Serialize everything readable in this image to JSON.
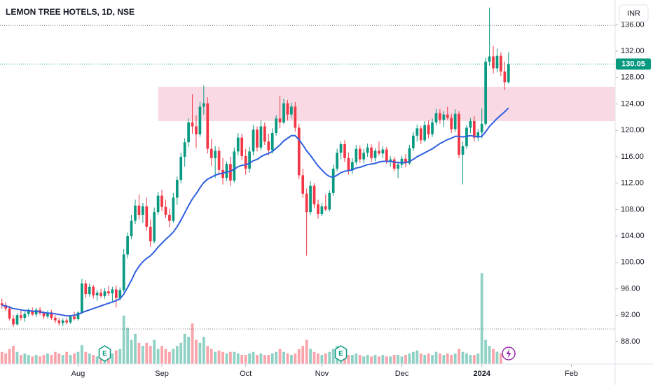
{
  "chart_data": {
    "type": "candlestick",
    "title": "LEMON TREE HOTELS, 1D, NSE",
    "currency": "INR",
    "up_color": "#089981",
    "down_color": "#f23645",
    "ma_color": "#2f5fe0",
    "zone_color": "#f8d3df",
    "xlim": [
      -0.5,
      161
    ],
    "ylim": [
      84.6,
      139.75
    ],
    "yticks": [
      {
        "value": 88,
        "label": "88.00"
      },
      {
        "value": 92,
        "label": "92.00"
      },
      {
        "value": 96,
        "label": "96.00"
      },
      {
        "value": 100,
        "label": "100.00"
      },
      {
        "value": 104,
        "label": "104.00"
      },
      {
        "value": 108,
        "label": "108.00"
      },
      {
        "value": 112,
        "label": "112.00"
      },
      {
        "value": 116,
        "label": "116.00"
      },
      {
        "value": 120,
        "label": "120.00"
      },
      {
        "value": 124,
        "label": "124.00"
      },
      {
        "value": 128,
        "label": "128.00"
      },
      {
        "value": 132,
        "label": "132.00"
      },
      {
        "value": 136,
        "label": "136.00"
      }
    ],
    "xticks": [
      {
        "value": 20,
        "label": "Aug"
      },
      {
        "value": 42,
        "label": "Sep"
      },
      {
        "value": 64,
        "label": "Oct"
      },
      {
        "value": 84,
        "label": "Nov"
      },
      {
        "value": 105,
        "label": "Dec"
      },
      {
        "value": 126,
        "label": "2024"
      },
      {
        "value": 149.5,
        "label": "Feb"
      }
    ],
    "zone": {
      "start": 41,
      "low": 121.4,
      "high": 126.6
    },
    "ref_lines": [
      135.9,
      89.9
    ],
    "events": [
      {
        "index": 27,
        "label": "E"
      },
      {
        "index": 89,
        "label": "E"
      }
    ],
    "vlim": [
      0,
      40
    ],
    "ohlc": [
      [
        93.8,
        94.5,
        93,
        93.5
      ],
      [
        93.5,
        94,
        92.6,
        93
      ],
      [
        93,
        93.4,
        91.2,
        91.5
      ],
      [
        91.5,
        92,
        90.2,
        90.6
      ],
      [
        90.6,
        92.3,
        90.4,
        92
      ],
      [
        92,
        92.8,
        91.2,
        91.6
      ],
      [
        91.6,
        92.5,
        91,
        92.2
      ],
      [
        92.2,
        93,
        91.8,
        92.6
      ],
      [
        92.6,
        93.2,
        91.9,
        92.1
      ],
      [
        92.1,
        93.1,
        91.7,
        92.8
      ],
      [
        92.8,
        93.2,
        92,
        92.3
      ],
      [
        92.3,
        92.6,
        91.4,
        91.8
      ],
      [
        91.8,
        92.7,
        91.5,
        92.4
      ],
      [
        92.4,
        92.8,
        91.3,
        91.6
      ],
      [
        91.6,
        92,
        90.8,
        91.2
      ],
      [
        91.2,
        91.6,
        90.4,
        90.8
      ],
      [
        90.8,
        91.5,
        90.3,
        91.2
      ],
      [
        91.2,
        91.6,
        90.6,
        90.9
      ],
      [
        90.9,
        92,
        90.7,
        91.8
      ],
      [
        91.8,
        92.5,
        91.2,
        91.4
      ],
      [
        91.4,
        92.6,
        91.2,
        92.4
      ],
      [
        92.4,
        97.5,
        92.2,
        96.8
      ],
      [
        96.8,
        97.3,
        94.6,
        95.2
      ],
      [
        95.2,
        96.8,
        94.8,
        96.3
      ],
      [
        96.3,
        96.6,
        94.5,
        95
      ],
      [
        95,
        95.8,
        94.2,
        95.4
      ],
      [
        95.4,
        96,
        94.6,
        94.9
      ],
      [
        94.9,
        96.1,
        94.5,
        95.6
      ],
      [
        95.6,
        96.4,
        94.9,
        95.3
      ],
      [
        95.3,
        96.3,
        94.1,
        95.9
      ],
      [
        95.9,
        96.5,
        93.2,
        94.6
      ],
      [
        94.6,
        96.2,
        94.2,
        95.8
      ],
      [
        95.8,
        102,
        95.5,
        101.2
      ],
      [
        101.2,
        104.5,
        100.6,
        104
      ],
      [
        104,
        107.2,
        103.5,
        106.3
      ],
      [
        106.3,
        109.5,
        105.8,
        108.6
      ],
      [
        108.6,
        110.3,
        106.5,
        107.2
      ],
      [
        107.2,
        109,
        106,
        108.5
      ],
      [
        108.5,
        109.8,
        104.8,
        105.4
      ],
      [
        105.4,
        106.5,
        102.4,
        103.2
      ],
      [
        103.2,
        108.3,
        102.9,
        107.6
      ],
      [
        107.6,
        110.7,
        107.2,
        110.1
      ],
      [
        110.1,
        111,
        107.8,
        108.4
      ],
      [
        108.4,
        109.5,
        106.7,
        107.2
      ],
      [
        107.2,
        108.1,
        105.3,
        106.3
      ],
      [
        106.3,
        110.5,
        106,
        109.8
      ],
      [
        109.8,
        113,
        108.7,
        112.5
      ],
      [
        112.5,
        116.6,
        112,
        116
      ],
      [
        116,
        118.8,
        114.5,
        118.2
      ],
      [
        118.2,
        121.8,
        117.5,
        121.2
      ],
      [
        121.2,
        125.5,
        119.5,
        120.6
      ],
      [
        120.6,
        122.3,
        117.3,
        119.4
      ],
      [
        119.4,
        124.3,
        119,
        123.6
      ],
      [
        123.6,
        126.8,
        122.4,
        124.1
      ],
      [
        124.1,
        125,
        116.5,
        117.2
      ],
      [
        117.2,
        118.7,
        114.6,
        115.8
      ],
      [
        115.8,
        117.6,
        112.8,
        116.9
      ],
      [
        116.9,
        117.5,
        113.2,
        114
      ],
      [
        114,
        115.8,
        111.8,
        112.8
      ],
      [
        112.8,
        115.3,
        112.3,
        114.9
      ],
      [
        114.9,
        116,
        111.6,
        112.4
      ],
      [
        112.4,
        117.4,
        112.1,
        116.8
      ],
      [
        116.8,
        119.6,
        116.2,
        118.9
      ],
      [
        118.9,
        119.5,
        115.5,
        116.1
      ],
      [
        116.1,
        117.2,
        113.3,
        114.2
      ],
      [
        114.2,
        117.5,
        113.6,
        116.8
      ],
      [
        116.8,
        120.8,
        116.2,
        120.1
      ],
      [
        120.1,
        120.6,
        116.8,
        117.4
      ],
      [
        117.4,
        121.5,
        117,
        120.6
      ],
      [
        120.6,
        121.2,
        117.8,
        118.3
      ],
      [
        118.3,
        119.5,
        116.2,
        117
      ],
      [
        117,
        120.3,
        116.5,
        119.6
      ],
      [
        119.6,
        122.3,
        119.2,
        121.8
      ],
      [
        121.8,
        125.2,
        120.3,
        121.2
      ],
      [
        121.2,
        124.8,
        121,
        124.1
      ],
      [
        124.1,
        124.6,
        121.5,
        122.4
      ],
      [
        122.4,
        124.2,
        121.8,
        123.6
      ],
      [
        123.6,
        124.3,
        119.8,
        120.4
      ],
      [
        120.4,
        121,
        112.6,
        113.2
      ],
      [
        113.2,
        114.2,
        109.8,
        110.4
      ],
      [
        110.4,
        111.2,
        101,
        107.6
      ],
      [
        107.6,
        112.3,
        107.2,
        111.6
      ],
      [
        111.6,
        112,
        108.2,
        108.8
      ],
      [
        108.8,
        109.5,
        106.6,
        107.3
      ],
      [
        107.3,
        109,
        107,
        108.5
      ],
      [
        108.5,
        110.3,
        107.8,
        108
      ],
      [
        108,
        110.9,
        107.7,
        110.5
      ],
      [
        110.5,
        114.8,
        110.1,
        114.2
      ],
      [
        114.2,
        117.2,
        113.8,
        116.6
      ],
      [
        116.6,
        118.3,
        115.6,
        117.9
      ],
      [
        117.9,
        118.5,
        115.2,
        115.8
      ],
      [
        115.8,
        116.6,
        113.3,
        114
      ],
      [
        114,
        115.8,
        113.4,
        115.2
      ],
      [
        115.2,
        117.8,
        114.8,
        117.2
      ],
      [
        117.2,
        117.7,
        115.1,
        115.6
      ],
      [
        115.6,
        117.2,
        115,
        116.6
      ],
      [
        116.6,
        118,
        116,
        117.4
      ],
      [
        117.4,
        117.9,
        115.2,
        115.8
      ],
      [
        115.8,
        117.3,
        115.3,
        116.9
      ],
      [
        116.9,
        118.3,
        116.2,
        116.5
      ],
      [
        116.5,
        117.6,
        115.8,
        117.1
      ],
      [
        117.1,
        117.5,
        114.9,
        115.3
      ],
      [
        115.3,
        116.1,
        114.5,
        115.6
      ],
      [
        115.6,
        116,
        113.8,
        114.2
      ],
      [
        114.2,
        115.3,
        112.8,
        114.8
      ],
      [
        114.8,
        116.1,
        114.3,
        115.7
      ],
      [
        115.7,
        116.4,
        114.4,
        115
      ],
      [
        115,
        117.8,
        114.8,
        117.3
      ],
      [
        117.3,
        119.8,
        116.9,
        119.2
      ],
      [
        119.2,
        120.9,
        118.3,
        120.3
      ],
      [
        120.3,
        120.7,
        117.9,
        118.5
      ],
      [
        118.5,
        121.4,
        118.2,
        120.8
      ],
      [
        120.8,
        121.5,
        118.8,
        119.4
      ],
      [
        119.4,
        121.8,
        119,
        121.2
      ],
      [
        121.2,
        123.3,
        120.8,
        122.6
      ],
      [
        122.6,
        123.2,
        121,
        121.6
      ],
      [
        121.6,
        122.9,
        120.5,
        122.4
      ],
      [
        122.4,
        123.6,
        121.6,
        121.9
      ],
      [
        121.9,
        122.5,
        119.6,
        120.2
      ],
      [
        120.2,
        123.2,
        119.8,
        122.5
      ],
      [
        122.5,
        122.9,
        115.8,
        116.3
      ],
      [
        116.3,
        118.3,
        111.8,
        117.6
      ],
      [
        117.6,
        120.8,
        117.2,
        120.4
      ],
      [
        120.4,
        121.9,
        119.6,
        121.4
      ],
      [
        121.4,
        122.2,
        118.3,
        118.9
      ],
      [
        118.9,
        120.2,
        118.4,
        119.7
      ],
      [
        119.7,
        123.3,
        118.8,
        121
      ],
      [
        121,
        131,
        120.7,
        130.4
      ],
      [
        130.4,
        138.6,
        129.8,
        131.2
      ],
      [
        131.2,
        132.8,
        128.6,
        129.4
      ],
      [
        129.4,
        132.4,
        128.8,
        131.3
      ],
      [
        131.3,
        131.8,
        128.2,
        128.9
      ],
      [
        128.9,
        130.4,
        126.1,
        127.3
      ],
      [
        127.3,
        131.8,
        127.1,
        130.05
      ]
    ],
    "volume": [
      4,
      3.5,
      5,
      6,
      4,
      3,
      3.5,
      3,
      2.5,
      3,
      2.5,
      3,
      3.5,
      3,
      4,
      3.5,
      3,
      4,
      3,
      3.5,
      4,
      6.2,
      4,
      3.5,
      3,
      2.5,
      3,
      3,
      2.5,
      3.5,
      4.5,
      5,
      16,
      12,
      8,
      10,
      7,
      6,
      7,
      6,
      8,
      5,
      6,
      5,
      4,
      5,
      6,
      7,
      10,
      9,
      13.4,
      8,
      7,
      9,
      6,
      5,
      4,
      4.5,
      4,
      3.5,
      4,
      4,
      3.5,
      3,
      3,
      3.5,
      4,
      3,
      3.5,
      3,
      3,
      3.5,
      4,
      5,
      4,
      3.5,
      3,
      3.5,
      5,
      6,
      8,
      5,
      4,
      3.5,
      3,
      3.5,
      4,
      5,
      6,
      4,
      3.5,
      3,
      3,
      3.5,
      3,
      2.5,
      3,
      2.5,
      3,
      2.5,
      3,
      2.5,
      2.5,
      3,
      3,
      2.5,
      3,
      3.5,
      4,
      4.5,
      3.5,
      3,
      3.5,
      3,
      4,
      3.5,
      3,
      3.5,
      3,
      3.5,
      5,
      4,
      3.5,
      3,
      3,
      3.5,
      30,
      8,
      6,
      5,
      4,
      3.5
    ],
    "ma": [
      93.5,
      93.4,
      93.2,
      93.0,
      92.9,
      92.8,
      92.7,
      92.7,
      92.6,
      92.6,
      92.5,
      92.4,
      92.3,
      92.3,
      92.2,
      92.1,
      92.0,
      91.9,
      91.9,
      92.0,
      92.1,
      92.4,
      92.6,
      92.8,
      93.0,
      93.2,
      93.4,
      93.6,
      93.8,
      94.0,
      94.2,
      94.5,
      95.2,
      96.2,
      97.3,
      98.5,
      99.4,
      100.1,
      100.6,
      101.0,
      101.6,
      102.3,
      102.9,
      103.5,
      104.0,
      104.6,
      105.4,
      106.4,
      107.5,
      108.6,
      109.6,
      110.4,
      111.3,
      112.1,
      112.6,
      112.9,
      113.2,
      113.4,
      113.5,
      113.7,
      113.8,
      114.1,
      114.5,
      114.7,
      114.8,
      115.0,
      115.4,
      115.6,
      116.0,
      116.3,
      116.5,
      116.8,
      117.3,
      117.8,
      118.4,
      118.8,
      119.2,
      119.2,
      118.6,
      117.8,
      116.9,
      116.2,
      115.4,
      114.6,
      114.0,
      113.4,
      113.0,
      112.9,
      113.2,
      113.6,
      113.8,
      113.9,
      114.0,
      114.3,
      114.4,
      114.6,
      114.8,
      114.9,
      115.0,
      115.2,
      115.3,
      115.3,
      115.3,
      115.2,
      115.1,
      115.1,
      115.1,
      115.3,
      115.6,
      116.0,
      116.3,
      116.6,
      116.9,
      117.2,
      117.6,
      118.0,
      118.3,
      118.6,
      118.8,
      119.1,
      119.1,
      119.0,
      119.1,
      119.2,
      119.1,
      119.0,
      119.1,
      119.8,
      120.6,
      121.2,
      121.8,
      122.3,
      122.8,
      123.4
    ]
  }
}
